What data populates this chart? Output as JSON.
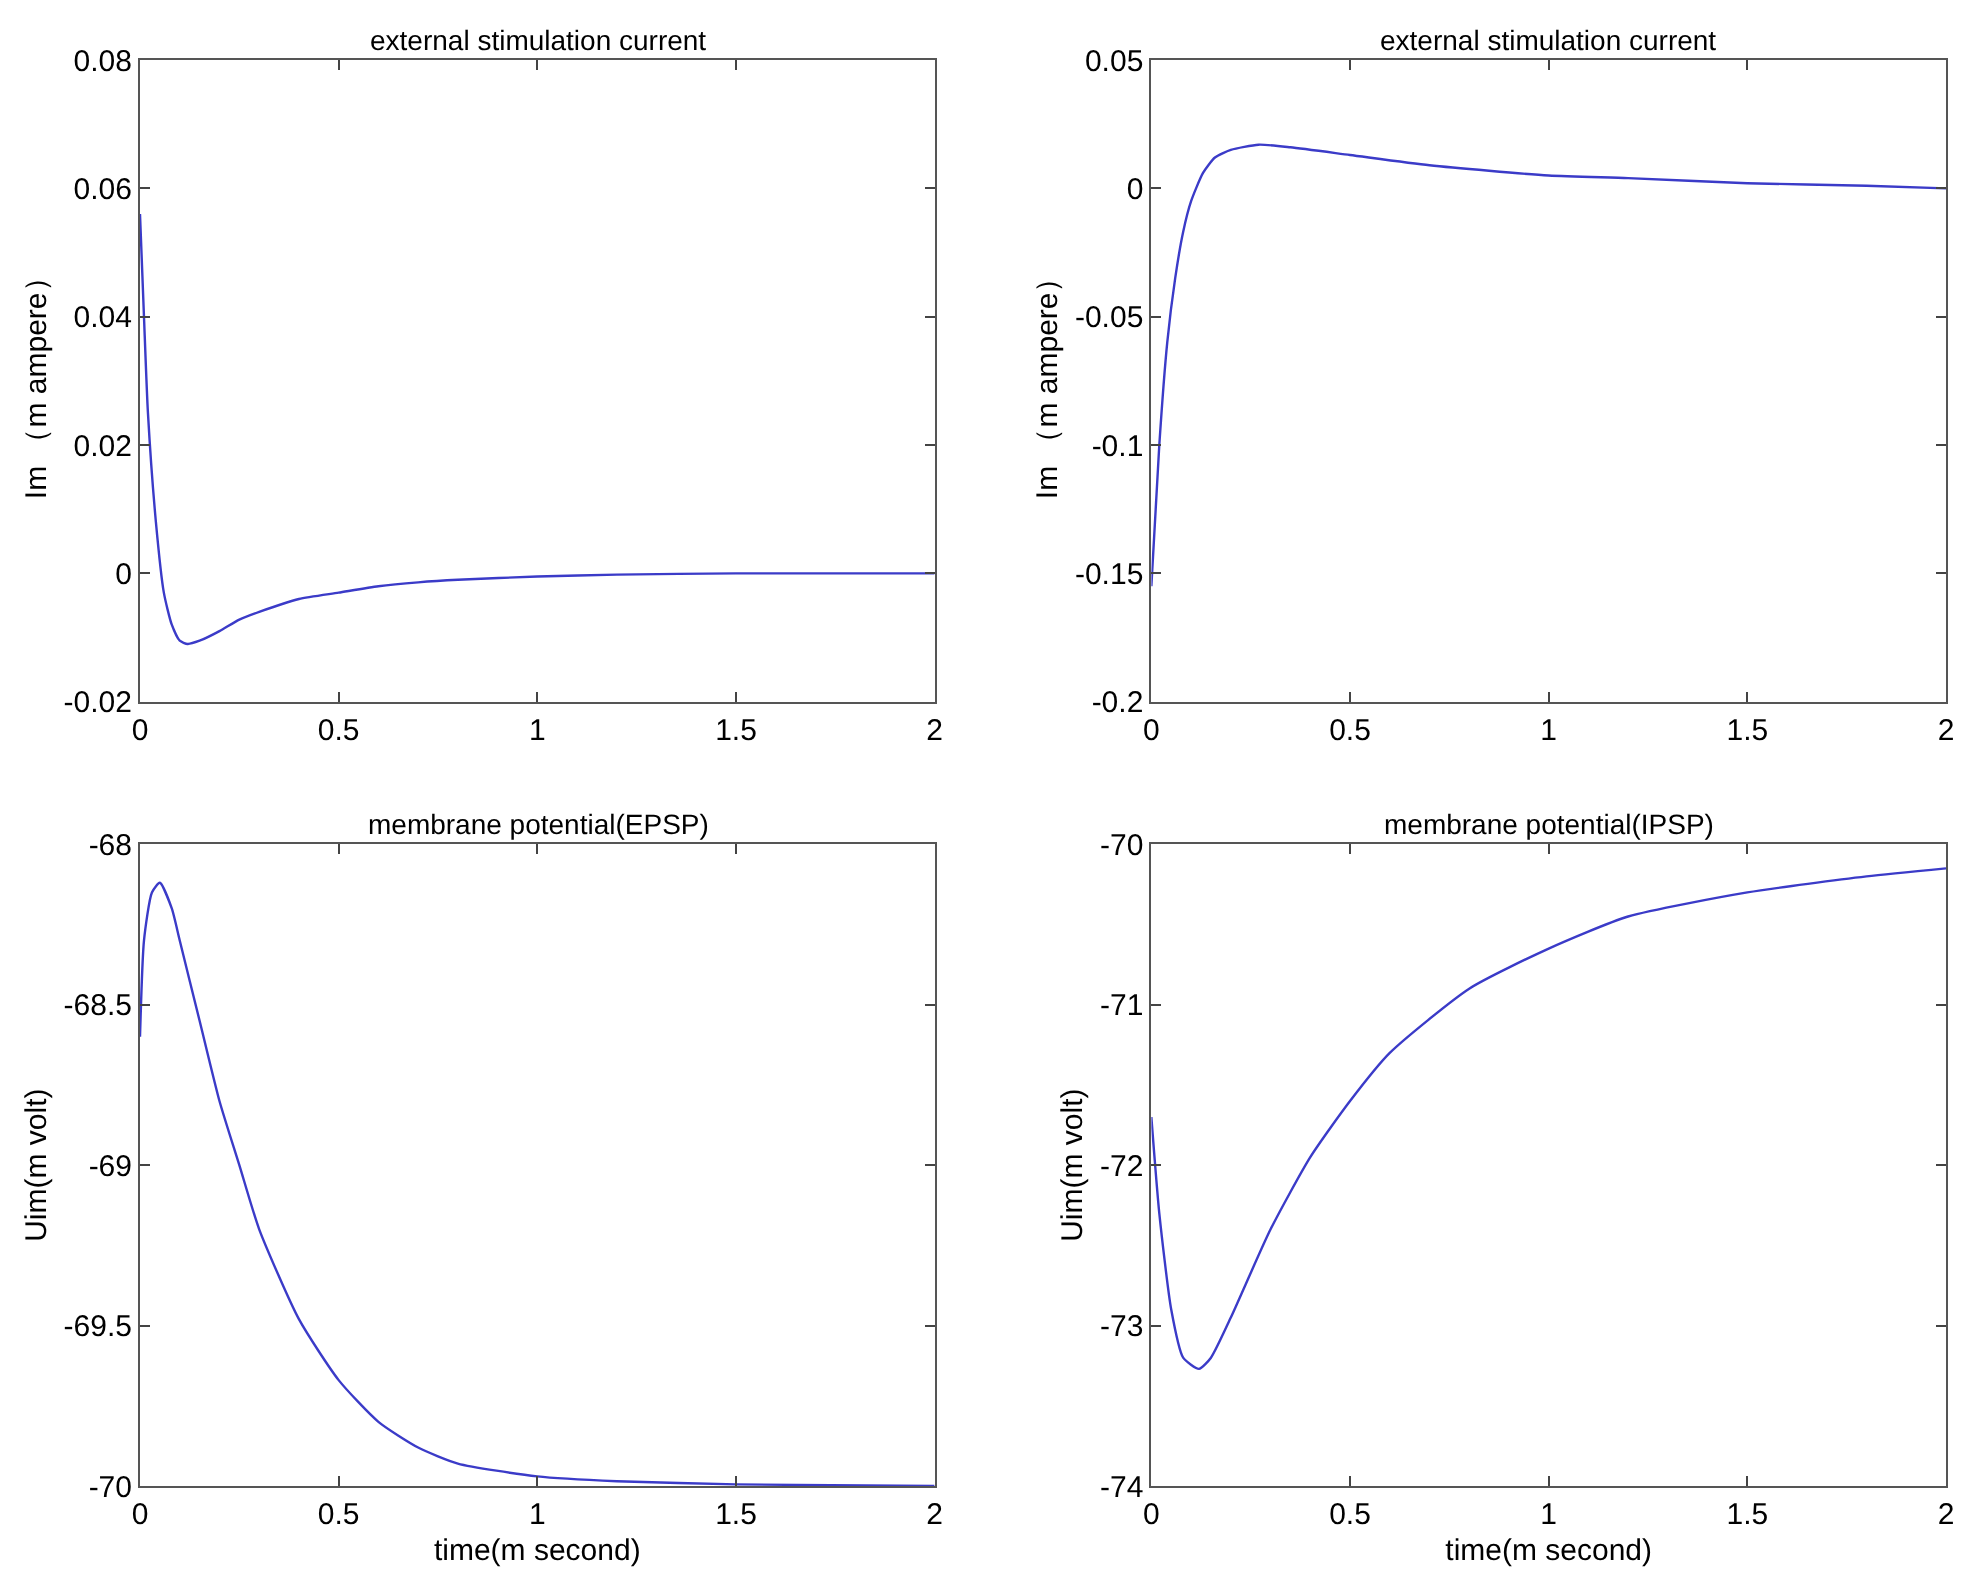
{
  "chart_data": [
    {
      "type": "line",
      "title": "external stimulation current",
      "ylabel": "Im （m ampere）",
      "xlim": [
        0,
        2
      ],
      "xticks": [
        0,
        0.5,
        1,
        1.5,
        2
      ],
      "ylim": [
        -0.02,
        0.08
      ],
      "yticks": [
        -0.02,
        0,
        0.02,
        0.04,
        0.06,
        0.08
      ],
      "x": [
        0,
        0.01,
        0.02,
        0.04,
        0.06,
        0.08,
        0.1,
        0.12,
        0.15,
        0.2,
        0.25,
        0.3,
        0.4,
        0.5,
        0.6,
        0.7,
        0.8,
        1,
        1.2,
        1.5,
        2
      ],
      "series": [
        {
          "color": "#3b3bc8",
          "values": [
            0.056,
            0.04,
            0.025,
            0.008,
            -0.003,
            -0.008,
            -0.0105,
            -0.011,
            -0.0105,
            -0.009,
            -0.0072,
            -0.006,
            -0.004,
            -0.003,
            -0.002,
            -0.0014,
            -0.001,
            -0.0005,
            -0.0002,
            0,
            0
          ]
        }
      ]
    },
    {
      "type": "line",
      "title": "external stimulation current",
      "ylabel": "Im （m ampere）",
      "xlim": [
        0,
        2
      ],
      "xticks": [
        0,
        0.5,
        1,
        1.5,
        2
      ],
      "ylim": [
        -0.2,
        0.05
      ],
      "yticks": [
        -0.2,
        -0.15,
        -0.1,
        -0.05,
        0,
        0.05
      ],
      "x": [
        0,
        0.02,
        0.04,
        0.06,
        0.08,
        0.1,
        0.13,
        0.16,
        0.2,
        0.27,
        0.35,
        0.5,
        0.7,
        1,
        1.2,
        1.5,
        1.8,
        2
      ],
      "series": [
        {
          "color": "#3b3bc8",
          "values": [
            -0.155,
            -0.1,
            -0.06,
            -0.035,
            -0.017,
            -0.005,
            0.006,
            0.012,
            0.015,
            0.017,
            0.016,
            0.013,
            0.009,
            0.005,
            0.004,
            0.002,
            0.001,
            0
          ]
        }
      ]
    },
    {
      "type": "line",
      "title": "membrane potential(EPSP)",
      "xlabel": "time(m second)",
      "ylabel": "Uim(m volt)",
      "xlim": [
        0,
        2
      ],
      "xticks": [
        0,
        0.5,
        1,
        1.5,
        2
      ],
      "ylim": [
        -70,
        -68
      ],
      "yticks": [
        -70,
        -69.5,
        -69,
        -68.5,
        -68
      ],
      "x": [
        0,
        0.01,
        0.03,
        0.05,
        0.08,
        0.1,
        0.15,
        0.2,
        0.25,
        0.3,
        0.4,
        0.5,
        0.6,
        0.7,
        0.8,
        1,
        1.2,
        1.5,
        2
      ],
      "series": [
        {
          "color": "#3b3bc8",
          "values": [
            -68.6,
            -68.3,
            -68.15,
            -68.12,
            -68.2,
            -68.3,
            -68.55,
            -68.8,
            -69.0,
            -69.2,
            -69.48,
            -69.67,
            -69.8,
            -69.88,
            -69.93,
            -69.97,
            -69.985,
            -69.995,
            -70
          ]
        }
      ]
    },
    {
      "type": "line",
      "title": "membrane potential(IPSP)",
      "xlabel": "time(m second)",
      "ylabel": "Uim(m volt)",
      "xlim": [
        0,
        2
      ],
      "xticks": [
        0,
        0.5,
        1,
        1.5,
        2
      ],
      "ylim": [
        -74,
        -70
      ],
      "yticks": [
        -74,
        -73,
        -72,
        -71,
        -70
      ],
      "x": [
        0,
        0.02,
        0.05,
        0.08,
        0.12,
        0.15,
        0.2,
        0.3,
        0.4,
        0.5,
        0.6,
        0.8,
        1,
        1.2,
        1.5,
        1.8,
        2
      ],
      "series": [
        {
          "color": "#3b3bc8",
          "values": [
            -71.7,
            -72.3,
            -72.9,
            -73.2,
            -73.27,
            -73.2,
            -72.95,
            -72.4,
            -71.95,
            -71.6,
            -71.3,
            -70.9,
            -70.65,
            -70.45,
            -70.3,
            -70.2,
            -70.15
          ]
        }
      ]
    }
  ]
}
